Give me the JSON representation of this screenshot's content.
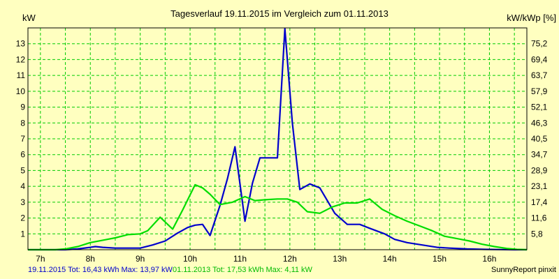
{
  "chart_data": {
    "type": "line",
    "title": "Tagesverlauf 19.11.2015 im Vergleich zum 01.11.2013",
    "ylabel_left": "kW",
    "ylabel_right": "kW/kWp [%]",
    "x_ticks": [
      "7h",
      "8h",
      "9h",
      "10h",
      "11h",
      "12h",
      "13h",
      "14h",
      "15h",
      "16h"
    ],
    "x_range": [
      6.75,
      16.75
    ],
    "y_ticks_left": [
      1,
      2,
      3,
      4,
      5,
      6,
      7,
      8,
      9,
      10,
      11,
      12,
      13
    ],
    "y_ticks_right": [
      "5,8",
      "11,6",
      "17,4",
      "23,1",
      "28,9",
      "34,7",
      "40,5",
      "46,3",
      "52,1",
      "57,9",
      "63,7",
      "69,4",
      "75,2"
    ],
    "y_range": [
      0,
      14
    ],
    "grid": true,
    "series": [
      {
        "name": "19.11.2015",
        "color": "#0000CC",
        "x": [
          6.75,
          7.5,
          7.75,
          8.0,
          8.1,
          8.25,
          8.5,
          8.75,
          9.0,
          9.25,
          9.5,
          9.75,
          9.95,
          10.1,
          10.25,
          10.4,
          10.6,
          10.75,
          10.9,
          11.1,
          11.25,
          11.4,
          11.6,
          11.75,
          11.9,
          12.05,
          12.2,
          12.4,
          12.6,
          12.75,
          12.9,
          13.15,
          13.4,
          13.6,
          13.9,
          14.1,
          14.35,
          14.65,
          14.95,
          15.2,
          15.55,
          15.9,
          16.25,
          16.5,
          16.75
        ],
        "y": [
          0,
          0,
          0.05,
          0.15,
          0.2,
          0.15,
          0.1,
          0.1,
          0.1,
          0.3,
          0.55,
          1.05,
          1.4,
          1.55,
          1.6,
          0.9,
          2.8,
          4.5,
          6.5,
          1.8,
          4.2,
          5.8,
          5.8,
          5.8,
          13.95,
          8.0,
          3.8,
          4.15,
          3.9,
          3.1,
          2.3,
          1.6,
          1.6,
          1.35,
          1.0,
          0.65,
          0.45,
          0.3,
          0.15,
          0.1,
          0.05,
          0.02,
          0.01,
          0.0,
          0.0
        ]
      },
      {
        "name": "01.11.2013",
        "color": "#00DD00",
        "x": [
          6.75,
          7.3,
          7.5,
          7.75,
          8.0,
          8.25,
          8.5,
          8.75,
          9.0,
          9.15,
          9.4,
          9.65,
          9.85,
          10.1,
          10.25,
          10.4,
          10.6,
          10.85,
          11.1,
          11.3,
          11.5,
          11.75,
          11.95,
          12.15,
          12.35,
          12.6,
          12.85,
          13.1,
          13.35,
          13.6,
          13.85,
          14.1,
          14.35,
          14.6,
          14.85,
          15.1,
          15.35,
          15.6,
          15.85,
          16.1,
          16.35,
          16.55,
          16.75
        ],
        "y": [
          0,
          0,
          0.05,
          0.2,
          0.45,
          0.6,
          0.75,
          0.95,
          1.0,
          1.2,
          2.05,
          1.3,
          2.5,
          4.1,
          3.9,
          3.5,
          2.85,
          3.0,
          3.35,
          3.1,
          3.15,
          3.2,
          3.2,
          3.0,
          2.4,
          2.3,
          2.7,
          2.95,
          2.95,
          3.2,
          2.55,
          2.15,
          1.8,
          1.5,
          1.2,
          0.85,
          0.7,
          0.55,
          0.35,
          0.2,
          0.08,
          0.02,
          0.0
        ]
      }
    ]
  },
  "footer": {
    "series1_summary": "19.11.2015 Tot: 16,43 kWh Max: 13,97 kW",
    "series2_summary": "01.11.2013 Tot: 17,53 kWh Max: 4,11 kW",
    "credit": "SunnyReport pinxit"
  },
  "colors": {
    "background": "#FFFFC0",
    "grid": "#00CC00",
    "axis": "#000000"
  }
}
